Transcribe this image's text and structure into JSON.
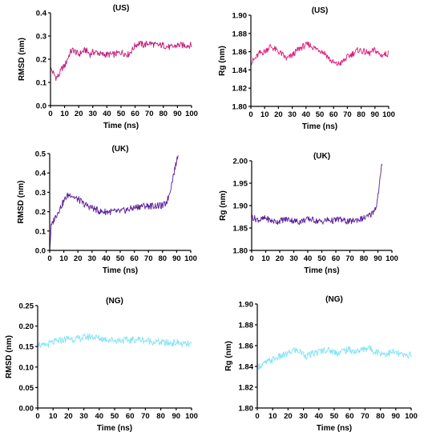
{
  "chart_data": [
    {
      "type": "line",
      "title": "(US)",
      "xlabel": "Time (ns)",
      "ylabel": "RMSD (nm)",
      "xlim": [
        0,
        100
      ],
      "ylim": [
        0,
        0.4
      ],
      "xticks": [
        "0",
        "10",
        "20",
        "30",
        "40",
        "50",
        "60",
        "70",
        "80",
        "90",
        "100"
      ],
      "yticks": [
        "0.0",
        "0.1",
        "0.2",
        "0.3",
        "0.4"
      ],
      "grid": false,
      "series": [
        {
          "color": "#c2187a",
          "x": [
            0,
            2,
            4,
            6,
            8,
            10,
            12,
            14,
            16,
            18,
            20,
            22,
            25,
            28,
            30,
            33,
            36,
            40,
            45,
            50,
            55,
            58,
            60,
            63,
            66,
            70,
            75,
            80,
            85,
            90,
            95,
            100
          ],
          "y": [
            0.16,
            0.14,
            0.12,
            0.13,
            0.16,
            0.17,
            0.2,
            0.23,
            0.24,
            0.23,
            0.22,
            0.23,
            0.24,
            0.22,
            0.23,
            0.23,
            0.22,
            0.22,
            0.22,
            0.23,
            0.22,
            0.24,
            0.26,
            0.27,
            0.26,
            0.27,
            0.26,
            0.26,
            0.25,
            0.26,
            0.26,
            0.26
          ]
        }
      ]
    },
    {
      "type": "line",
      "title": "(US)",
      "xlabel": "Time (ns)",
      "ylabel": "Rg (nm)",
      "xlim": [
        0,
        100
      ],
      "ylim": [
        1.8,
        1.9
      ],
      "xticks": [
        "0",
        "10",
        "20",
        "30",
        "40",
        "50",
        "60",
        "70",
        "80",
        "90",
        "100"
      ],
      "yticks": [
        "1.80",
        "1.82",
        "1.84",
        "1.86",
        "1.88",
        "1.90"
      ],
      "grid": false,
      "series": [
        {
          "color": "#e0197a",
          "x": [
            0,
            3,
            6,
            10,
            14,
            18,
            22,
            26,
            30,
            34,
            38,
            42,
            46,
            50,
            54,
            58,
            62,
            66,
            70,
            74,
            78,
            82,
            86,
            90,
            94,
            100
          ],
          "y": [
            1.848,
            1.852,
            1.858,
            1.86,
            1.866,
            1.862,
            1.858,
            1.852,
            1.856,
            1.862,
            1.866,
            1.868,
            1.864,
            1.862,
            1.858,
            1.85,
            1.846,
            1.848,
            1.854,
            1.858,
            1.862,
            1.86,
            1.858,
            1.862,
            1.856,
            1.858
          ]
        }
      ]
    },
    {
      "type": "line",
      "title": "(UK)",
      "xlabel": "Time (ns)",
      "ylabel": "RMSD (nm)",
      "xlim": [
        0,
        100
      ],
      "ylim": [
        0,
        0.5
      ],
      "xticks": [
        "0",
        "10",
        "20",
        "30",
        "40",
        "50",
        "60",
        "70",
        "80",
        "90",
        "100"
      ],
      "yticks": [
        "0.0",
        "0.1",
        "0.2",
        "0.3",
        "0.4",
        "0.5"
      ],
      "grid": false,
      "series": [
        {
          "color": "#5b1f9a",
          "x": [
            0,
            1,
            3,
            6,
            9,
            12,
            15,
            18,
            21,
            24,
            27,
            30,
            33,
            36,
            40,
            45,
            50,
            55,
            60,
            65,
            70,
            75,
            80,
            82,
            84,
            86,
            88,
            90,
            91
          ],
          "y": [
            0.0,
            0.12,
            0.16,
            0.2,
            0.24,
            0.28,
            0.29,
            0.27,
            0.26,
            0.24,
            0.23,
            0.22,
            0.21,
            0.2,
            0.2,
            0.2,
            0.2,
            0.21,
            0.22,
            0.23,
            0.23,
            0.23,
            0.23,
            0.24,
            0.27,
            0.33,
            0.4,
            0.46,
            0.5
          ]
        }
      ]
    },
    {
      "type": "line",
      "title": "(UK)",
      "xlabel": "Time (ns)",
      "ylabel": "Rg (nm)",
      "xlim": [
        0,
        100
      ],
      "ylim": [
        1.8,
        2.0
      ],
      "xticks": [
        "0",
        "10",
        "20",
        "30",
        "40",
        "50",
        "60",
        "70",
        "80",
        "90",
        "100"
      ],
      "yticks": [
        "1.80",
        "1.85",
        "1.90",
        "1.95",
        "2.00"
      ],
      "grid": false,
      "series": [
        {
          "color": "#5b1f9a",
          "x": [
            0,
            3,
            6,
            10,
            14,
            18,
            22,
            26,
            30,
            34,
            38,
            42,
            46,
            50,
            54,
            58,
            62,
            66,
            70,
            74,
            78,
            82,
            85,
            87,
            89,
            90,
            91,
            92,
            93
          ],
          "y": [
            1.875,
            1.87,
            1.868,
            1.872,
            1.866,
            1.864,
            1.868,
            1.87,
            1.866,
            1.864,
            1.868,
            1.87,
            1.866,
            1.864,
            1.868,
            1.866,
            1.87,
            1.866,
            1.864,
            1.868,
            1.87,
            1.874,
            1.88,
            1.888,
            1.9,
            1.92,
            1.945,
            1.97,
            1.995
          ]
        }
      ]
    },
    {
      "type": "line",
      "title": "(NG)",
      "xlabel": "Time (ns)",
      "ylabel": "RMSD (nm)",
      "xlim": [
        0,
        100
      ],
      "ylim": [
        0,
        0.25
      ],
      "xticks": [
        "0",
        "10",
        "20",
        "30",
        "40",
        "50",
        "60",
        "70",
        "80",
        "90",
        "100"
      ],
      "yticks": [
        "0.00",
        "0.05",
        "0.10",
        "0.15",
        "0.20",
        "0.25"
      ],
      "grid": false,
      "series": [
        {
          "color": "#7fe3f5",
          "x": [
            0,
            3,
            6,
            10,
            15,
            20,
            25,
            30,
            35,
            40,
            45,
            50,
            55,
            60,
            65,
            70,
            75,
            80,
            85,
            90,
            95,
            100
          ],
          "y": [
            0.16,
            0.15,
            0.155,
            0.16,
            0.165,
            0.17,
            0.168,
            0.172,
            0.175,
            0.17,
            0.168,
            0.165,
            0.166,
            0.165,
            0.168,
            0.165,
            0.162,
            0.16,
            0.158,
            0.16,
            0.155,
            0.155
          ]
        }
      ]
    },
    {
      "type": "line",
      "title": "(NG)",
      "xlabel": "Time (ns)",
      "ylabel": "Rg (nm)",
      "xlim": [
        0,
        100
      ],
      "ylim": [
        1.8,
        1.9
      ],
      "xticks": [
        "0",
        "10",
        "20",
        "30",
        "40",
        "50",
        "60",
        "70",
        "80",
        "90",
        "100"
      ],
      "yticks": [
        "1.80",
        "1.82",
        "1.84",
        "1.86",
        "1.88",
        "1.90"
      ],
      "grid": false,
      "series": [
        {
          "color": "#7fe3f5",
          "x": [
            0,
            4,
            8,
            12,
            16,
            20,
            24,
            28,
            32,
            36,
            40,
            44,
            48,
            52,
            56,
            60,
            64,
            68,
            72,
            76,
            80,
            84,
            88,
            92,
            96,
            100
          ],
          "y": [
            1.84,
            1.842,
            1.845,
            1.848,
            1.85,
            1.852,
            1.856,
            1.854,
            1.85,
            1.852,
            1.854,
            1.856,
            1.855,
            1.853,
            1.855,
            1.856,
            1.854,
            1.856,
            1.858,
            1.855,
            1.853,
            1.852,
            1.854,
            1.852,
            1.85,
            1.852
          ]
        }
      ]
    }
  ]
}
